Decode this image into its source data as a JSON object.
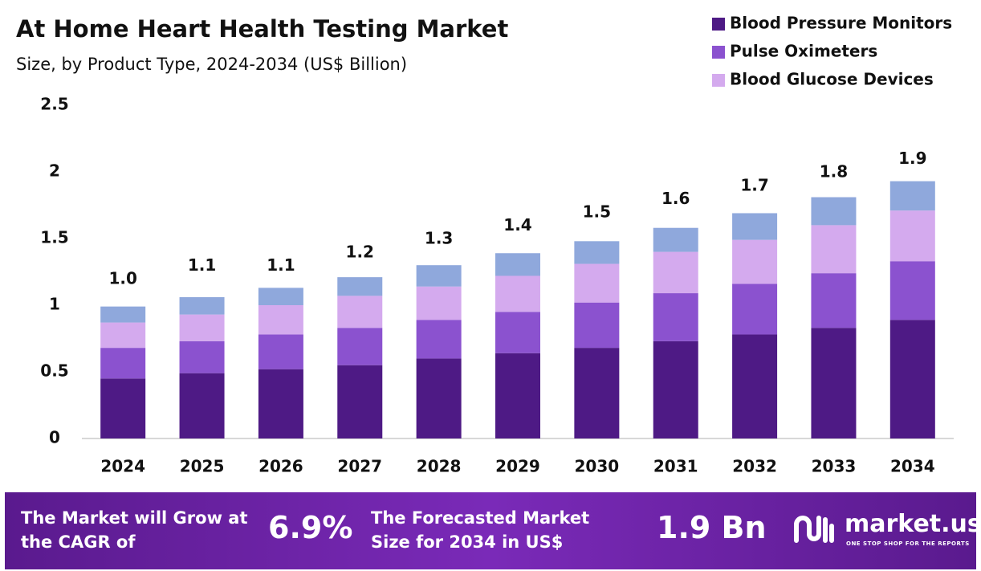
{
  "chart_data": {
    "type": "stacked_bar",
    "title": "At Home Heart Health Testing Market",
    "subtitle": "Size, by Product Type, 2024-2034 (US$ Billion)",
    "categories": [
      "2024",
      "2025",
      "2026",
      "2027",
      "2028",
      "2029",
      "2030",
      "2031",
      "2032",
      "2033",
      "2034"
    ],
    "series": [
      {
        "name": "Blood Pressure Monitors",
        "color": "#4e1a85",
        "values": [
          0.45,
          0.49,
          0.52,
          0.55,
          0.6,
          0.64,
          0.68,
          0.73,
          0.78,
          0.83,
          0.89
        ]
      },
      {
        "name": "Pulse Oximeters",
        "color": "#8b52cf",
        "values": [
          0.23,
          0.24,
          0.26,
          0.28,
          0.29,
          0.31,
          0.34,
          0.36,
          0.38,
          0.41,
          0.44
        ]
      },
      {
        "name": "Blood Glucose Devices",
        "color": "#d4aaee",
        "values": [
          0.19,
          0.2,
          0.22,
          0.24,
          0.25,
          0.27,
          0.29,
          0.31,
          0.33,
          0.36,
          0.38
        ]
      },
      {
        "color": "#8fa8dc",
        "values": [
          0.12,
          0.13,
          0.13,
          0.14,
          0.16,
          0.17,
          0.17,
          0.18,
          0.2,
          0.21,
          0.22
        ]
      }
    ],
    "totals": {
      "values": [
        1.0,
        1.1,
        1.1,
        1.2,
        1.3,
        1.4,
        1.5,
        1.6,
        1.7,
        1.8,
        1.9
      ],
      "value_labels": [
        "1.0",
        "1.1",
        "1.1",
        "1.2",
        "1.3",
        "1.4",
        "1.5",
        "1.6",
        "1.7",
        "1.8",
        "1.9"
      ]
    },
    "ylim": [
      0,
      2.5
    ],
    "yticks": [
      0,
      0.5,
      1,
      1.5,
      2,
      2.5
    ],
    "grid": false,
    "legend": "top-right"
  },
  "footer": {
    "cagr_text": "The Market will Grow at the CAGR of",
    "cagr_value": "6.9%",
    "forecast_text": "The Forecasted Market Size for 2034 in US$",
    "forecast_value": "1.9 Bn",
    "brand": "market.us",
    "tagline": "ONE STOP SHOP FOR THE REPORTS"
  }
}
